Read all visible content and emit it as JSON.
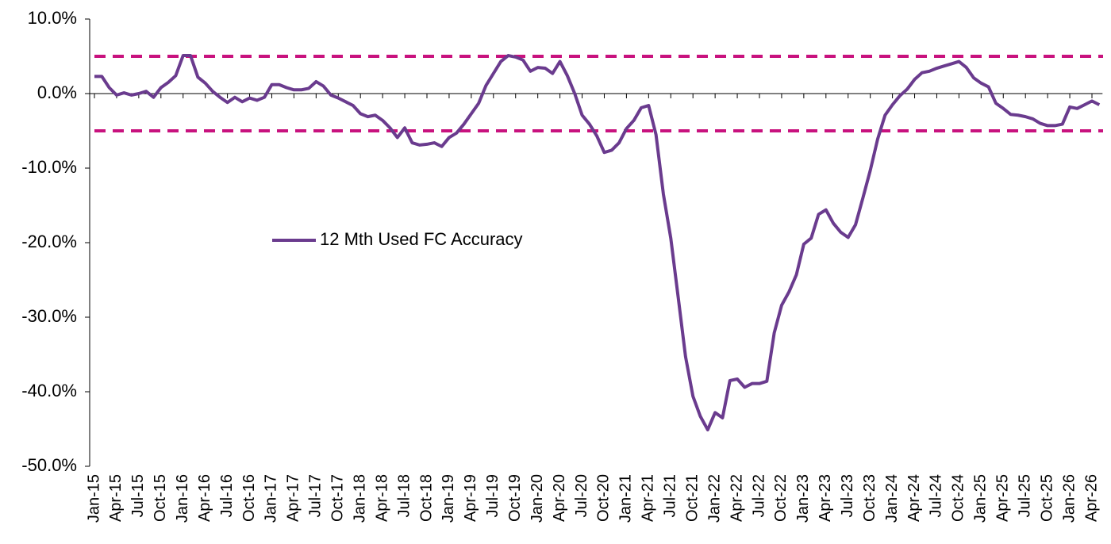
{
  "chart_data": {
    "type": "line",
    "categories": [
      "Jan-15",
      null,
      null,
      "Apr-15",
      null,
      null,
      "Jul-15",
      null,
      null,
      "Oct-15",
      null,
      null,
      "Jan-16",
      null,
      null,
      "Apr-16",
      null,
      null,
      "Jul-16",
      null,
      null,
      "Oct-16",
      null,
      null,
      "Jan-17",
      null,
      null,
      "Apr-17",
      null,
      null,
      "Jul-17",
      null,
      null,
      "Oct-17",
      null,
      null,
      "Jan-18",
      null,
      null,
      "Apr-18",
      null,
      null,
      "Jul-18",
      null,
      null,
      "Oct-18",
      null,
      null,
      "Jan-19",
      null,
      null,
      "Apr-19",
      null,
      null,
      "Jul-19",
      null,
      null,
      "Oct-19",
      null,
      null,
      "Jan-20",
      null,
      null,
      "Apr-20",
      null,
      null,
      "Jul-20",
      null,
      null,
      "Oct-20",
      null,
      null,
      "Jan-21",
      null,
      null,
      "Apr-21",
      null,
      null,
      "Jul-21",
      null,
      null,
      "Oct-21",
      null,
      null,
      "Jan-22",
      null,
      null,
      "Apr-22",
      null,
      null,
      "Jul-22",
      null,
      null,
      "Oct-22",
      null,
      null,
      "Jan-23",
      null,
      null,
      "Apr-23",
      null,
      null,
      "Jul-23",
      null,
      null,
      "Oct-23",
      null,
      null,
      "Jan-24",
      null,
      null,
      "Apr-24",
      null,
      null,
      "Jul-24",
      null,
      null,
      "Oct-24",
      null,
      null,
      "Jan-25",
      null,
      null,
      "Apr-25",
      null,
      null,
      "Jul-25",
      null,
      null,
      "Oct-25",
      null,
      null,
      "Jan-26",
      null,
      null,
      "Apr-26",
      null
    ],
    "series": [
      {
        "name": "12 Mth Used FC Accuracy",
        "color": "#6a3b8e",
        "values": [
          2.3,
          2.3,
          0.8,
          -0.2,
          0.1,
          -0.2,
          0,
          0.3,
          -0.5,
          0.8,
          1.5,
          2.4,
          5.1,
          5.1,
          2.2,
          1.4,
          0.3,
          -0.5,
          -1.2,
          -0.5,
          -1.1,
          -0.6,
          -0.9,
          -0.5,
          1.2,
          1.2,
          0.8,
          0.5,
          0.5,
          0.7,
          1.6,
          1.0,
          -0.2,
          -0.6,
          -1.1,
          -1.6,
          -2.7,
          -3.1,
          -2.9,
          -3.6,
          -4.6,
          -5.9,
          -4.6,
          -6.6,
          -6.9,
          -6.8,
          -6.6,
          -7.1,
          -5.9,
          -5.3,
          -4.1,
          -2.7,
          -1.3,
          1.1,
          2.7,
          4.3,
          5.1,
          4.9,
          4.5,
          3.0,
          3.5,
          3.4,
          2.7,
          4.3,
          2.4,
          0,
          -2.9,
          -4.1,
          -5.7,
          -7.9,
          -7.6,
          -6.6,
          -4.7,
          -3.6,
          -1.9,
          -1.6,
          -5.5,
          -13.5,
          -19.4,
          -27.3,
          -35.3,
          -40.6,
          -43.3,
          -45.1,
          -42.8,
          -43.5,
          -38.5,
          -38.3,
          -39.4,
          -38.9,
          -38.9,
          -38.6,
          -32.1,
          -28.4,
          -26.6,
          -24.3,
          -20.2,
          -19.4,
          -16.2,
          -15.6,
          -17.4,
          -18.6,
          -19.3,
          -17.6,
          -14.0,
          -10.3,
          -6.1,
          -2.9,
          -1.5,
          -0.3,
          0.6,
          1.9,
          2.8,
          3.0,
          3.4,
          3.7,
          4.0,
          4.3,
          3.5,
          2.1,
          1.4,
          0.9,
          -1.3,
          -2.0,
          -2.8,
          -2.9,
          -3.1,
          -3.4,
          -4.0,
          -4.3,
          -4.3,
          -4.1,
          -1.8,
          -2.0,
          -1.5,
          -1.0,
          -1.5
        ]
      }
    ],
    "reference_lines": [
      5,
      -5
    ],
    "reference_color": "#c8127e",
    "ylim": [
      -50,
      10
    ],
    "yticks": [
      {
        "value": 10,
        "label": "10.0%"
      },
      {
        "value": 0,
        "label": "0.0%"
      },
      {
        "value": -10,
        "label": "-10.0%"
      },
      {
        "value": -20,
        "label": "-20.0%"
      },
      {
        "value": -30,
        "label": "-30.0%"
      },
      {
        "value": -40,
        "label": "-40.0%"
      },
      {
        "value": -50,
        "label": "-50.0%"
      }
    ],
    "grid": false,
    "legend": "center-left"
  }
}
